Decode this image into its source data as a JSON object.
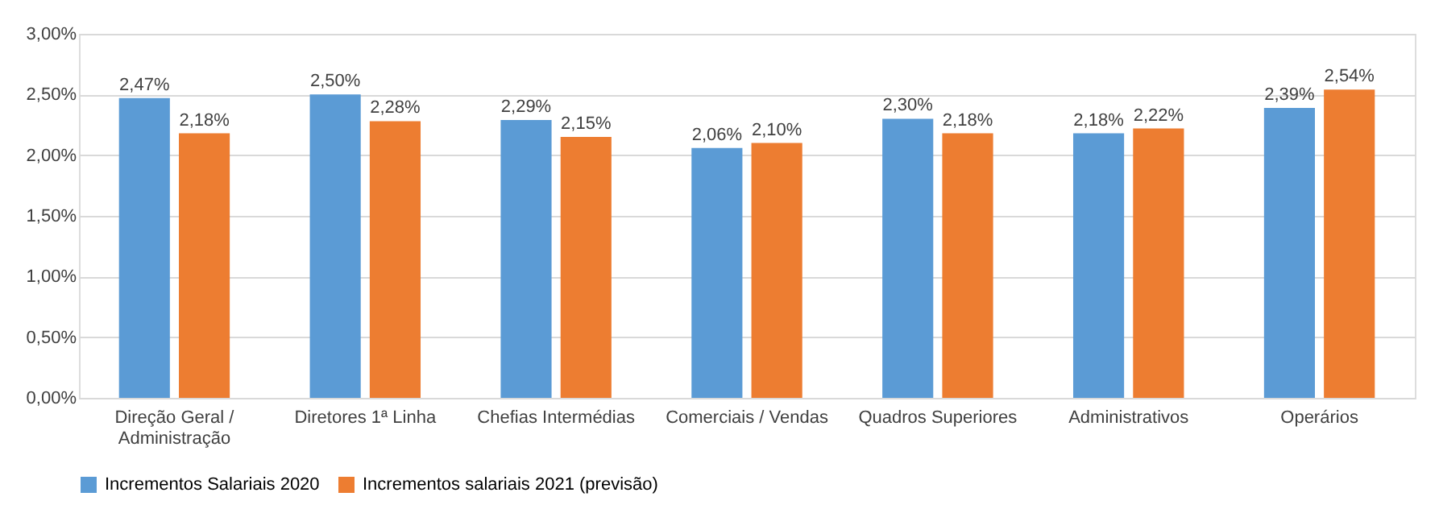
{
  "chart_data": {
    "type": "bar",
    "categories": [
      "Direção Geral / Administração",
      "Diretores 1ª Linha",
      "Chefias Intermédias",
      "Comerciais / Vendas",
      "Quadros Superiores",
      "Administrativos",
      "Operários"
    ],
    "series": [
      {
        "name": "Incrementos Salariais 2020",
        "color": "#5b9bd5",
        "values": [
          2.47,
          2.5,
          2.29,
          2.06,
          2.3,
          2.18,
          2.39
        ],
        "value_labels": [
          "2,47%",
          "2,50%",
          "2,29%",
          "2,06%",
          "2,30%",
          "2,18%",
          "2,39%"
        ]
      },
      {
        "name": "Incrementos salariais 2021 (previsão)",
        "color": "#ed7d31",
        "values": [
          2.18,
          2.28,
          2.15,
          2.1,
          2.18,
          2.22,
          2.54
        ],
        "value_labels": [
          "2,18%",
          "2,28%",
          "2,15%",
          "2,10%",
          "2,18%",
          "2,22%",
          "2,54%"
        ]
      }
    ],
    "ylim": [
      0,
      3
    ],
    "yticks": [
      {
        "value": 0,
        "label": "0,00%"
      },
      {
        "value": 0.5,
        "label": "0,50%"
      },
      {
        "value": 1,
        "label": "1,00%"
      },
      {
        "value": 1.5,
        "label": "1,50%"
      },
      {
        "value": 2,
        "label": "2,00%"
      },
      {
        "value": 2.5,
        "label": "2,50%"
      },
      {
        "value": 3,
        "label": "3,00%"
      }
    ],
    "grid": "y",
    "legend": "bottom"
  }
}
